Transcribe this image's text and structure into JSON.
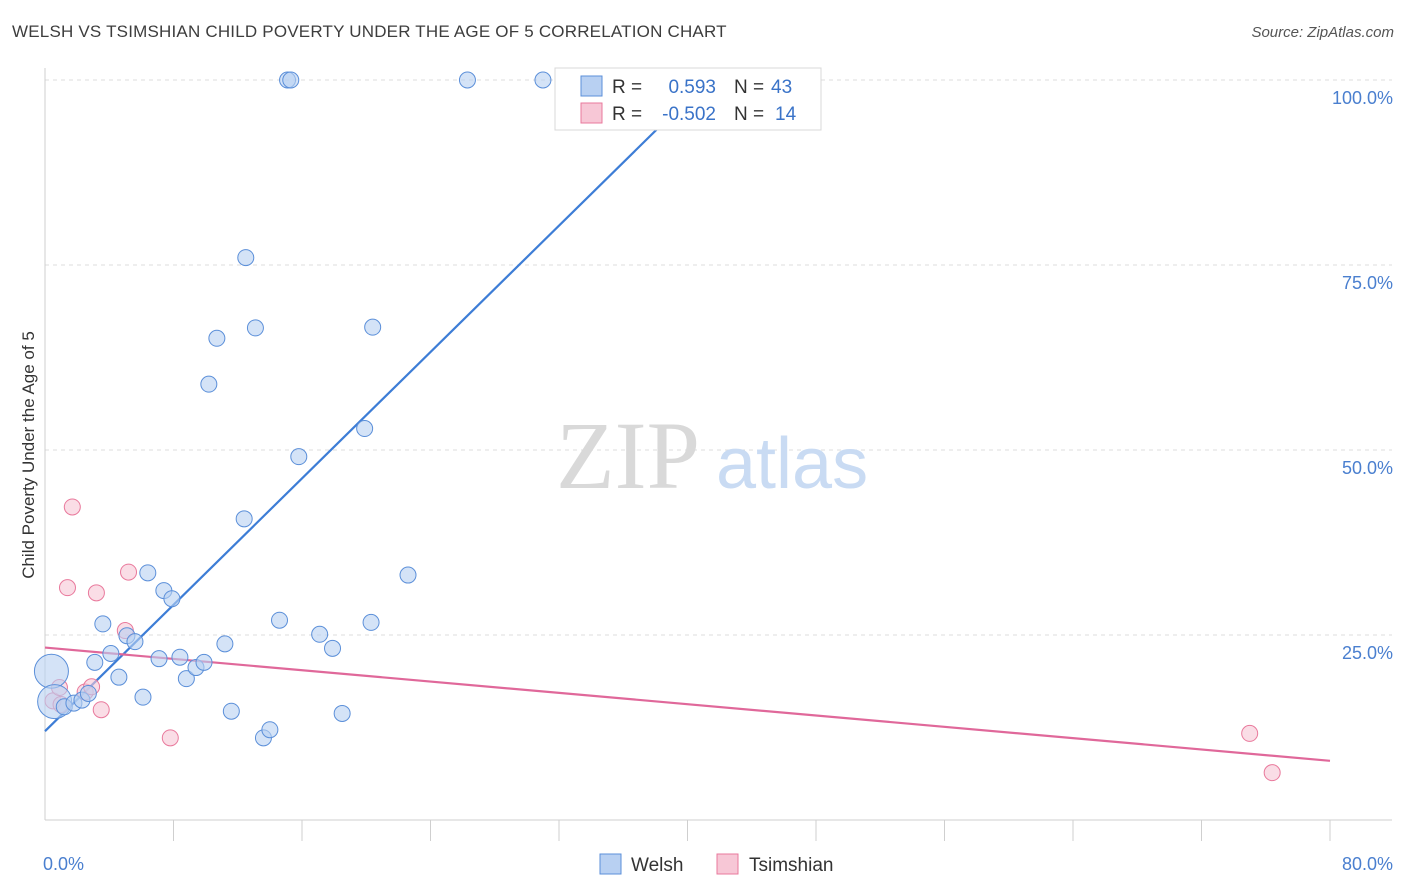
{
  "chart_data": {
    "type": "scatter",
    "title": "WELSH VS TSIMSHIAN CHILD POVERTY UNDER THE AGE OF 5 CORRELATION CHART",
    "source": "Source: ZipAtlas.com",
    "watermark": {
      "zip": "ZIP",
      "atlas": "atlas"
    },
    "ylabel": "Child Poverty Under the Age of 5",
    "xlim": [
      0,
      80
    ],
    "ylim": [
      0,
      100
    ],
    "x_tick_labels": [
      {
        "value": 0,
        "label": "0.0%"
      },
      {
        "value": 80,
        "label": "80.0%"
      }
    ],
    "y_tick_labels": [
      {
        "value": 25,
        "label": "25.0%"
      },
      {
        "value": 50,
        "label": "50.0%"
      },
      {
        "value": 75,
        "label": "75.0%"
      },
      {
        "value": 100,
        "label": "100.0%"
      }
    ],
    "legend": {
      "rows": [
        {
          "r_label": "R =",
          "r_value": "0.593",
          "n_label": "N =",
          "n_value": "43"
        },
        {
          "r_label": "R =",
          "r_value": "-0.502",
          "n_label": "N =",
          "n_value": "14"
        }
      ]
    },
    "series": [
      {
        "name": "Welsh",
        "color": "#5b8fd9",
        "fill": "#b8d0f2",
        "trendline": {
          "x": [
            0,
            40
          ],
          "y": [
            12,
            97.4
          ]
        },
        "points": [
          {
            "x": 0.4,
            "y": 20.1,
            "size": "large"
          },
          {
            "x": 0.6,
            "y": 16.0,
            "size": "large"
          },
          {
            "x": 1.2,
            "y": 15.3
          },
          {
            "x": 1.8,
            "y": 15.8
          },
          {
            "x": 2.3,
            "y": 16.2
          },
          {
            "x": 2.7,
            "y": 17.1
          },
          {
            "x": 3.1,
            "y": 21.3
          },
          {
            "x": 3.6,
            "y": 26.5
          },
          {
            "x": 4.1,
            "y": 22.5
          },
          {
            "x": 4.6,
            "y": 19.3
          },
          {
            "x": 5.1,
            "y": 24.9
          },
          {
            "x": 5.6,
            "y": 24.1
          },
          {
            "x": 6.1,
            "y": 16.6
          },
          {
            "x": 6.4,
            "y": 33.4
          },
          {
            "x": 7.1,
            "y": 21.8
          },
          {
            "x": 7.4,
            "y": 31.0
          },
          {
            "x": 7.9,
            "y": 29.9
          },
          {
            "x": 8.4,
            "y": 22.0
          },
          {
            "x": 8.8,
            "y": 19.1
          },
          {
            "x": 9.4,
            "y": 20.6
          },
          {
            "x": 9.9,
            "y": 21.3
          },
          {
            "x": 10.2,
            "y": 58.9
          },
          {
            "x": 10.7,
            "y": 65.1
          },
          {
            "x": 11.2,
            "y": 23.8
          },
          {
            "x": 11.6,
            "y": 14.7
          },
          {
            "x": 12.4,
            "y": 40.7
          },
          {
            "x": 12.5,
            "y": 76.0
          },
          {
            "x": 13.1,
            "y": 66.5
          },
          {
            "x": 13.6,
            "y": 11.1
          },
          {
            "x": 14.0,
            "y": 12.2
          },
          {
            "x": 14.6,
            "y": 27.0
          },
          {
            "x": 15.1,
            "y": 100.0
          },
          {
            "x": 15.3,
            "y": 100.0
          },
          {
            "x": 15.8,
            "y": 49.1
          },
          {
            "x": 17.1,
            "y": 25.1
          },
          {
            "x": 17.9,
            "y": 23.2
          },
          {
            "x": 18.5,
            "y": 14.4
          },
          {
            "x": 19.9,
            "y": 52.9
          },
          {
            "x": 20.3,
            "y": 26.7
          },
          {
            "x": 20.4,
            "y": 66.6
          },
          {
            "x": 22.6,
            "y": 33.1
          },
          {
            "x": 26.3,
            "y": 100.0
          },
          {
            "x": 31.0,
            "y": 100.0
          }
        ]
      },
      {
        "name": "Tsimshian",
        "color": "#e9799c",
        "fill": "#f7c7d6",
        "trendline": {
          "x": [
            0,
            80
          ],
          "y": [
            23.3,
            8.0
          ]
        },
        "points": [
          {
            "x": 0.5,
            "y": 16.1
          },
          {
            "x": 0.9,
            "y": 17.9
          },
          {
            "x": 1.4,
            "y": 31.4
          },
          {
            "x": 1.7,
            "y": 42.3
          },
          {
            "x": 2.5,
            "y": 17.3
          },
          {
            "x": 2.9,
            "y": 18.0
          },
          {
            "x": 3.2,
            "y": 30.7
          },
          {
            "x": 3.5,
            "y": 14.9
          },
          {
            "x": 5.0,
            "y": 25.6
          },
          {
            "x": 5.2,
            "y": 33.5
          },
          {
            "x": 7.8,
            "y": 11.1
          },
          {
            "x": 75.0,
            "y": 11.7
          },
          {
            "x": 76.4,
            "y": 6.4
          },
          {
            "x": 1.0,
            "y": 15.6
          }
        ]
      }
    ]
  }
}
